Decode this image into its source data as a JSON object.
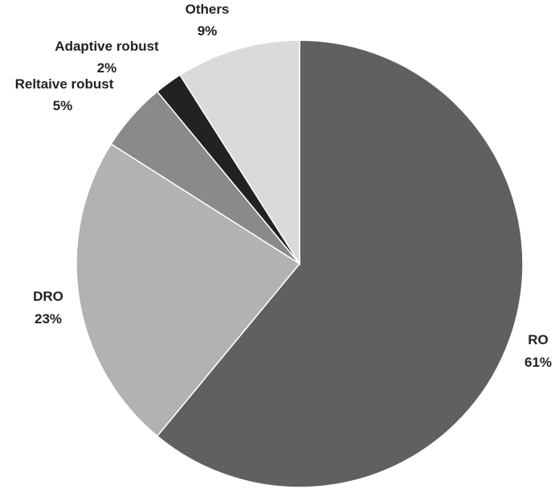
{
  "chart_data": {
    "type": "pie",
    "title": "",
    "start_angle_deg": 0,
    "direction": "clockwise",
    "slices": [
      {
        "label": "RO",
        "percent_label": "61%",
        "value": 61,
        "color": "#606060"
      },
      {
        "label": "DRO",
        "percent_label": "23%",
        "value": 23,
        "color": "#b2b2b2"
      },
      {
        "label": "Reltaive robust",
        "percent_label": "5%",
        "value": 5,
        "color": "#8a8a8a"
      },
      {
        "label": "Adaptive robust",
        "percent_label": "2%",
        "value": 2,
        "color": "#222222"
      },
      {
        "label": "Others",
        "percent_label": "9%",
        "value": 9,
        "color": "#dadada"
      }
    ]
  }
}
